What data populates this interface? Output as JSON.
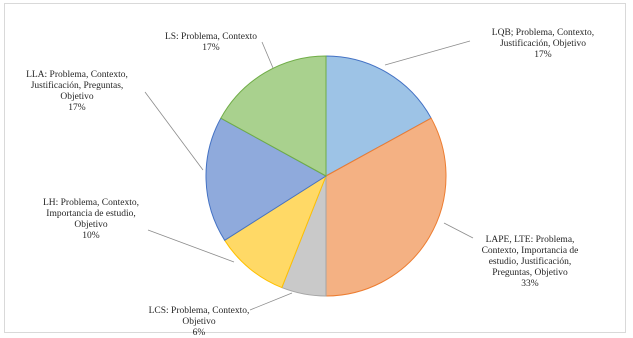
{
  "chart_data": {
    "type": "pie",
    "title": "",
    "start_angle_deg": 0,
    "direction": "clockwise",
    "slices": [
      {
        "category": "LQB",
        "label_lines": [
          "LQB; Problema, Contexto,",
          "Justificación, Objetivo",
          "17%"
        ],
        "value": 17,
        "color": "#4472c4",
        "fill": "#9dc3e6"
      },
      {
        "category": "LAPE, LTE",
        "label_lines": [
          "LAPE, LTE: Problema,",
          "Contexto, Importancia de",
          "estudio, Justificación,",
          "Preguntas, Objetivo",
          "33%"
        ],
        "value": 33,
        "color": "#ed7d31",
        "fill": "#f4b183"
      },
      {
        "category": "LCS",
        "label_lines": [
          "LCS: Problema, Contexto,",
          "Objetivo",
          "6%"
        ],
        "value": 6,
        "color": "#a5a5a5",
        "fill": "#c9c9c9"
      },
      {
        "category": "LH",
        "label_lines": [
          "LH: Problema, Contexto,",
          "Importancia de estudio,",
          "Objetivo",
          "10%"
        ],
        "value": 10,
        "color": "#ffc000",
        "fill": "#ffd966"
      },
      {
        "category": "LLA",
        "label_lines": [
          "LLA: Problema, Contexto,",
          "Justificación, Preguntas,",
          "Objetivo",
          "17%"
        ],
        "value": 17,
        "color": "#4472c4",
        "fill": "#8faadc"
      },
      {
        "category": "LS",
        "label_lines": [
          "LS: Problema, Contexto",
          "17%"
        ],
        "value": 17,
        "color": "#70ad47",
        "fill": "#a9d18e"
      }
    ]
  }
}
